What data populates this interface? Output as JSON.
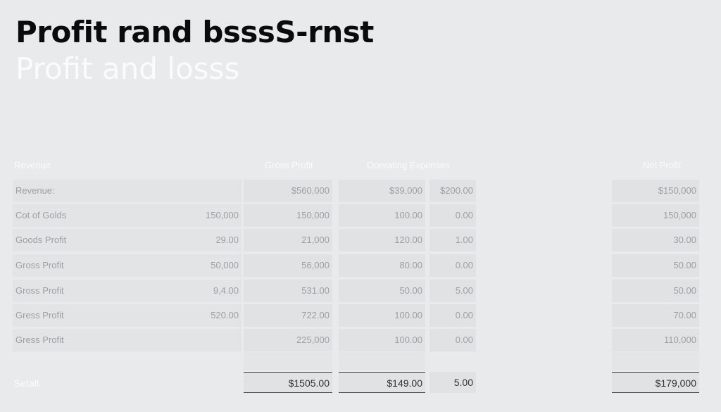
{
  "title": {
    "main": "Profit rand bsssS-rnst",
    "sub": "Profit and losss"
  },
  "headers": {
    "revenue": "Revenue",
    "gross_profit": "Gross Profit",
    "operating_expenses": "Operating Expenses",
    "net_profit": "Net Profit"
  },
  "rows": [
    {
      "label": "Revenue:",
      "c1": "",
      "c2": "$560,000",
      "c3": "$39,000",
      "c4": "$200.00",
      "c5": "$150,000"
    },
    {
      "label": "Cot of Golds",
      "c1": "150,000",
      "c2": "150,000",
      "c3": "100.00",
      "c4": "0.00",
      "c5": "150,000"
    },
    {
      "label": "Goods Profit",
      "c1": "29.00",
      "c2": "21,000",
      "c3": "120.00",
      "c4": "1.00",
      "c5": "30.00"
    },
    {
      "label": "Gross Profit",
      "c1": "50,000",
      "c2": "56,000",
      "c3": "80.00",
      "c4": "0.00",
      "c5": "50.00"
    },
    {
      "label": "Gross Profit",
      "c1": "9,4.00",
      "c2": "531.00",
      "c3": "50.00",
      "c4": "5.00",
      "c5": "50.00"
    },
    {
      "label": "Gress Profit",
      "c1": "520.00",
      "c2": "722.00",
      "c3": "100.00",
      "c4": "0.00",
      "c5": "70.00"
    },
    {
      "label": "Gress Profit",
      "c1": "",
      "c2": "225,000",
      "c3": "100.00",
      "c4": "0.00",
      "c5": "110,000"
    }
  ],
  "totals": {
    "label": "Setalt",
    "gross_profit": "$1505.00",
    "operating_expenses": "$149.00",
    "other": "5.00",
    "net_profit": "$179,000"
  }
}
